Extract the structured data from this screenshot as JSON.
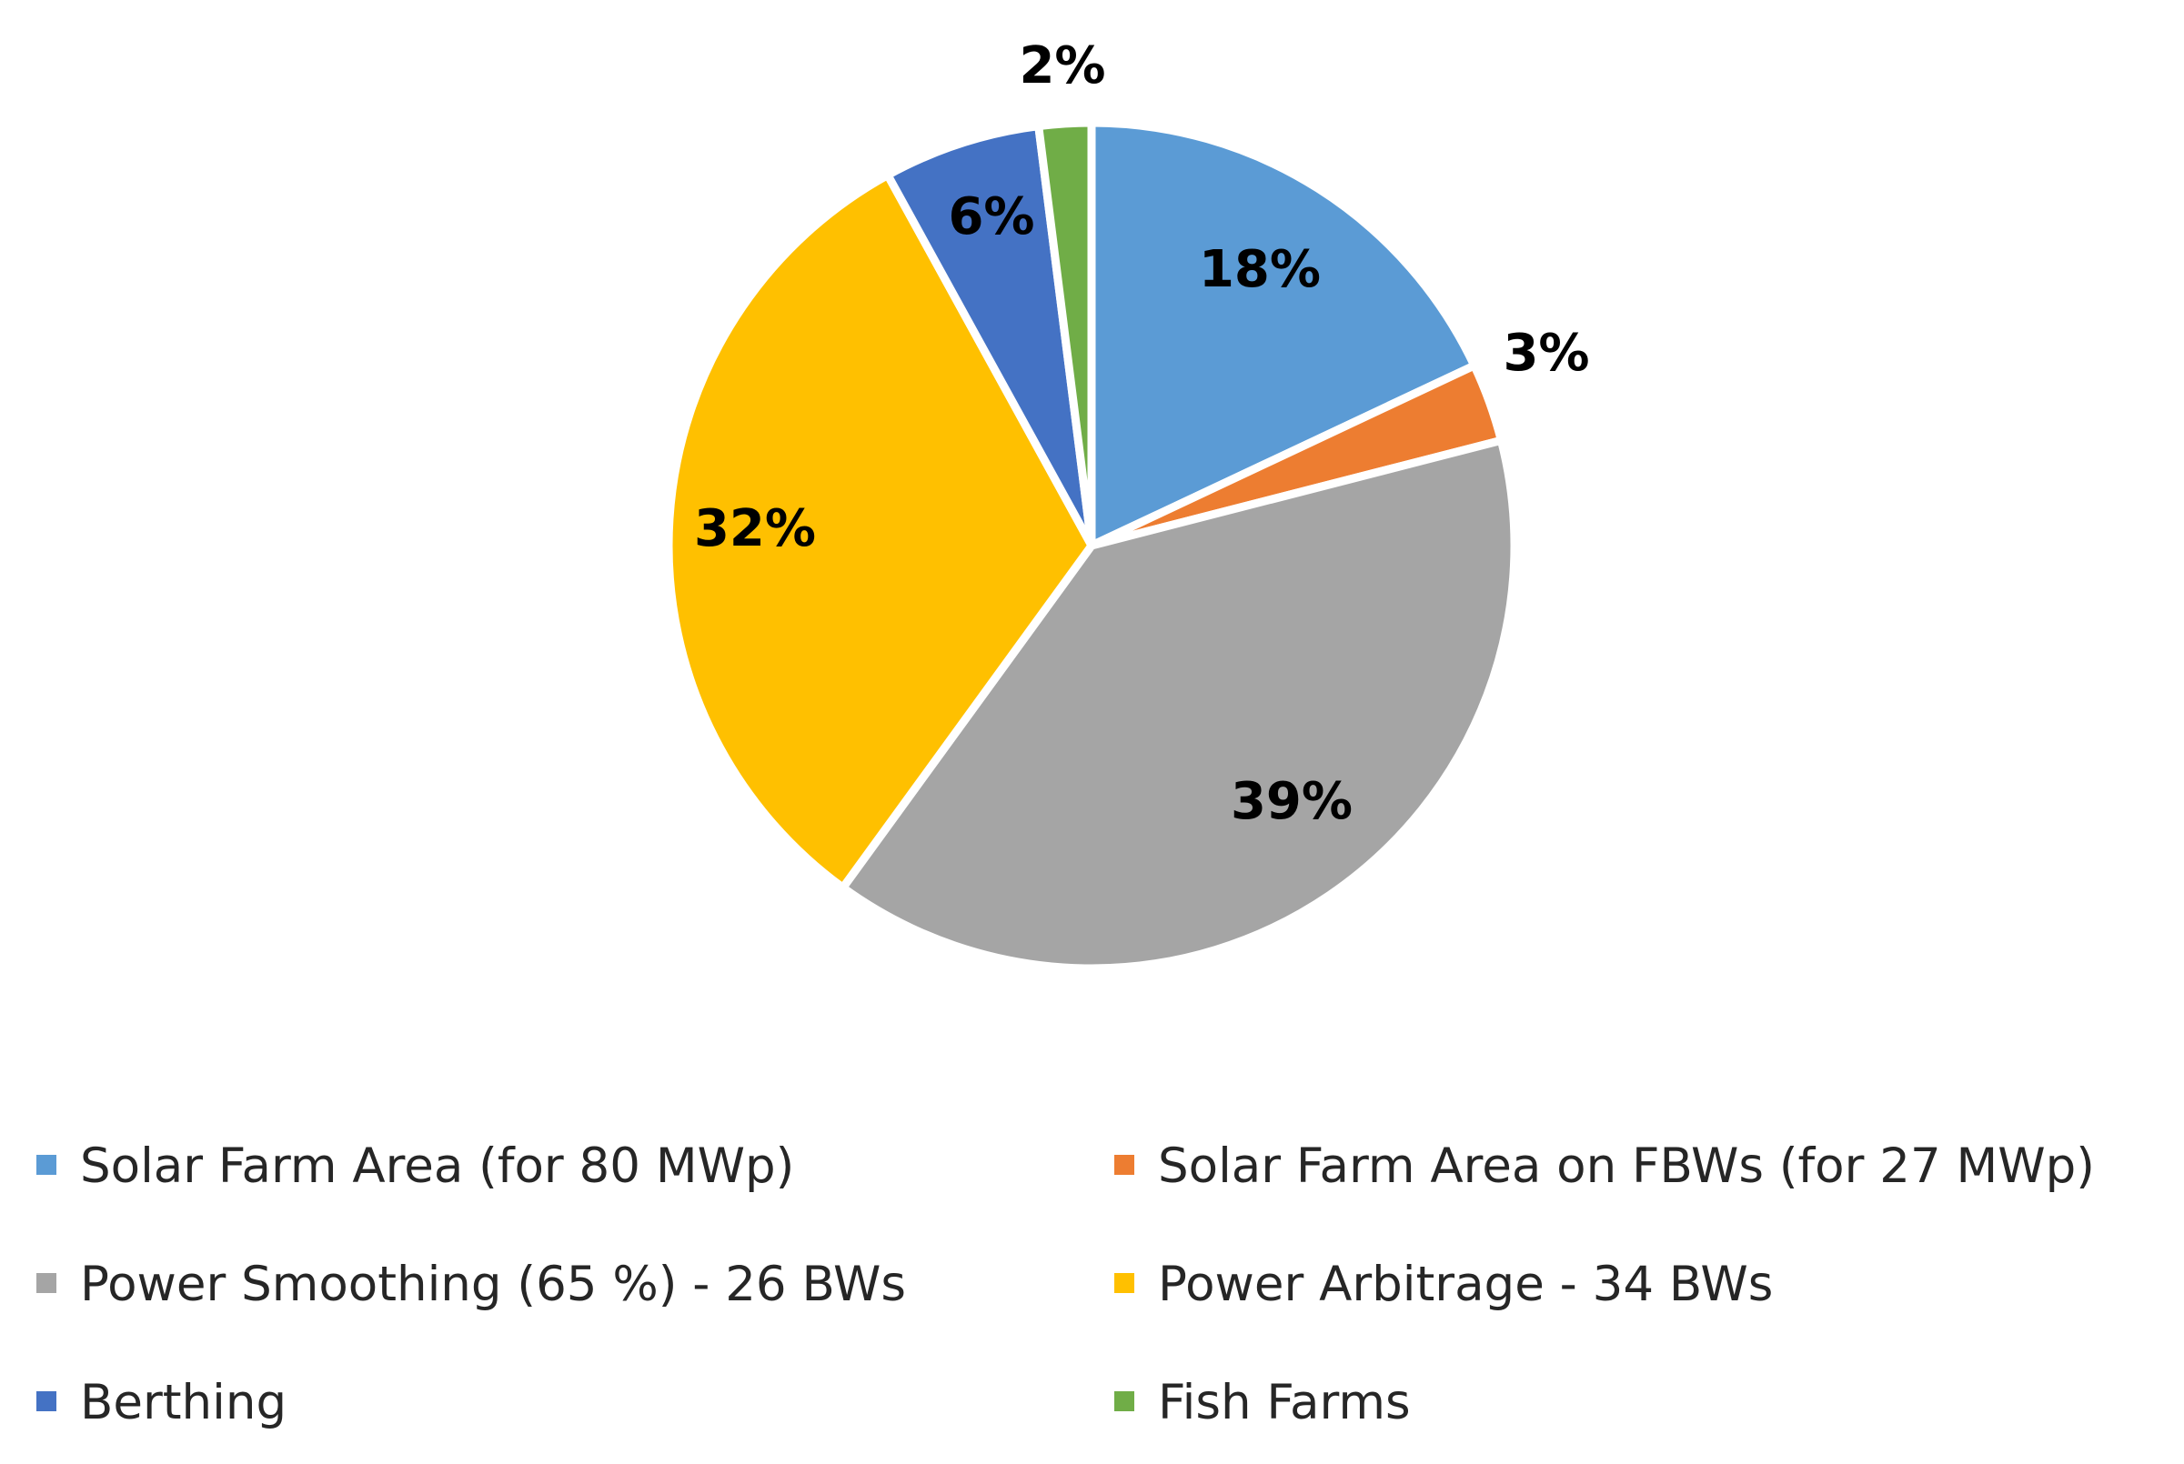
{
  "chart_data": {
    "type": "pie",
    "title": "",
    "legend_position": "bottom",
    "slices": [
      {
        "name": "Solar Farm Area (for 80 MWp)",
        "value": 18,
        "label": "18%",
        "color": "#5B9BD5"
      },
      {
        "name": "Solar Farm Area on FBWs (for 27 MWp)",
        "value": 3,
        "label": "3%",
        "color": "#ED7D31"
      },
      {
        "name": "Power Smoothing (65 %) - 26 BWs",
        "value": 39,
        "label": "39%",
        "color": "#A5A5A5"
      },
      {
        "name": "Power Arbitrage - 34 BWs",
        "value": 32,
        "label": "32%",
        "color": "#FFC000"
      },
      {
        "name": "Berthing",
        "value": 6,
        "label": "6%",
        "color": "#4472C4"
      },
      {
        "name": "Fish Farms",
        "value": 2,
        "label": "2%",
        "color": "#70AD47"
      }
    ]
  }
}
